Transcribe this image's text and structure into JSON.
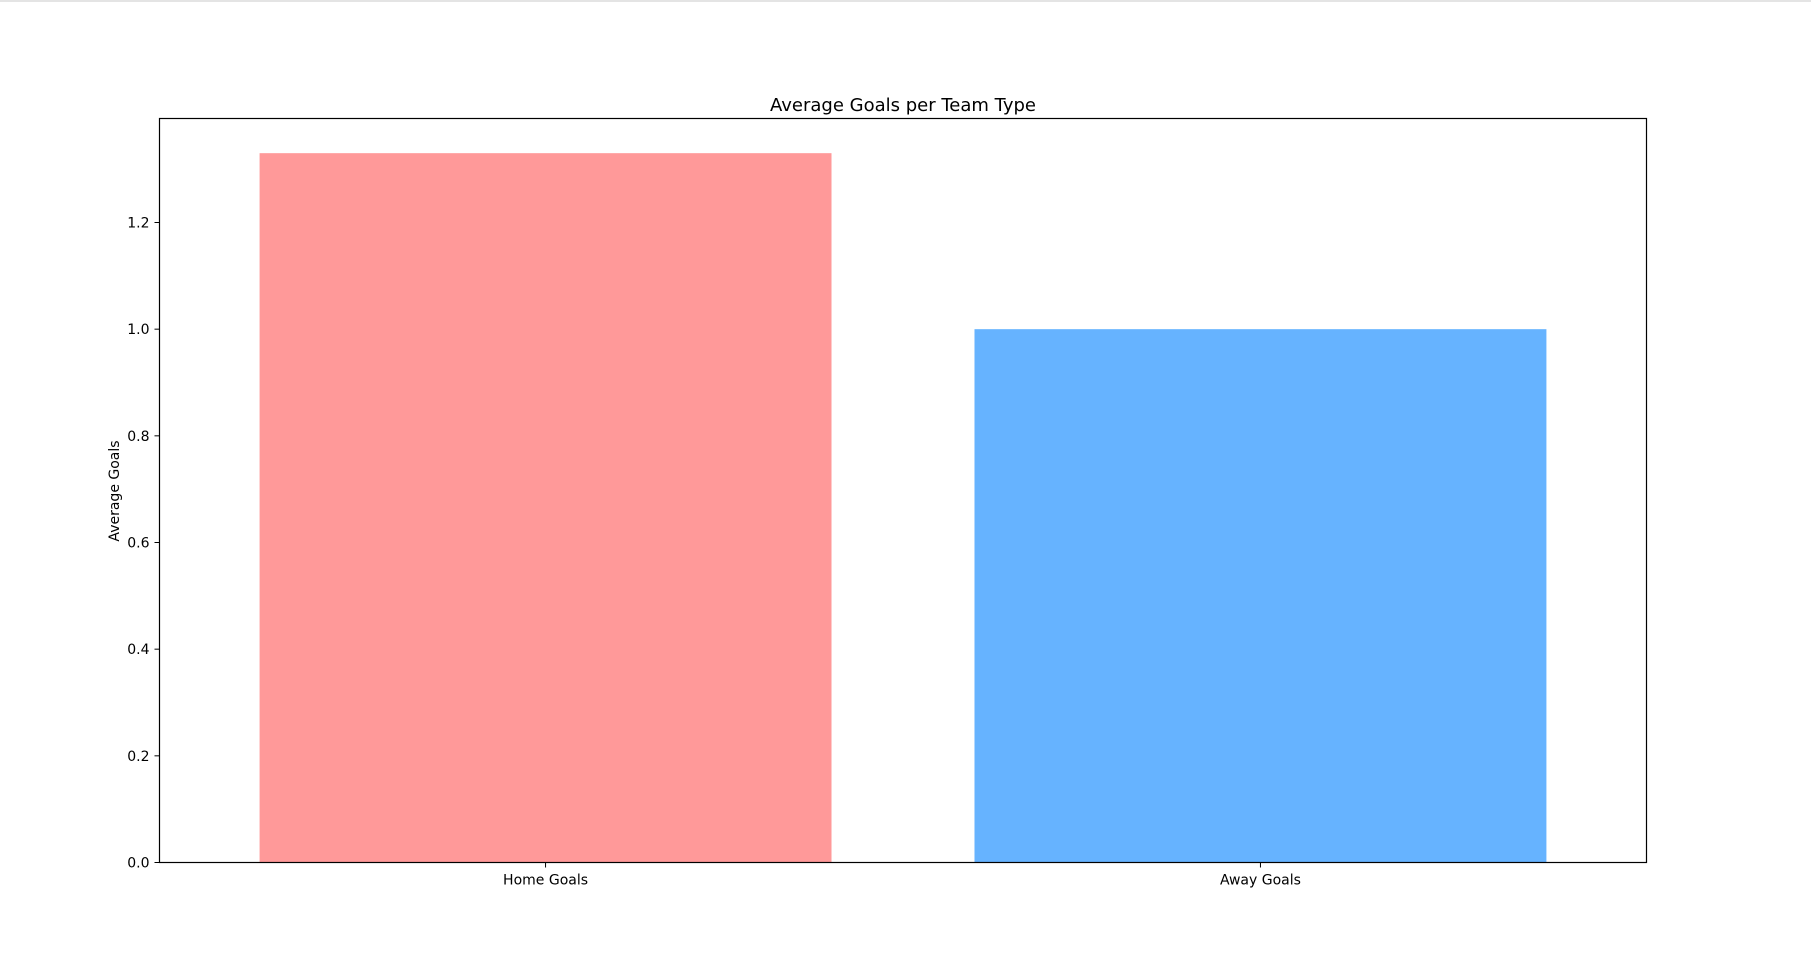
{
  "chart_data": {
    "type": "bar",
    "title": "Average Goals per Team Type",
    "xlabel": "",
    "ylabel": "Average Goals",
    "categories": [
      "Home Goals",
      "Away Goals"
    ],
    "values": [
      1.33,
      1.0
    ],
    "colors": [
      "#ff9999",
      "#66b3ff"
    ],
    "ylim": [
      0,
      1.395
    ],
    "yticks": [
      0.0,
      0.2,
      0.4,
      0.6,
      0.8,
      1.0,
      1.2
    ],
    "ytick_labels": [
      "0.0",
      "0.2",
      "0.4",
      "0.6",
      "0.8",
      "1.0",
      "1.2"
    ],
    "grid": false,
    "legend": "none"
  }
}
